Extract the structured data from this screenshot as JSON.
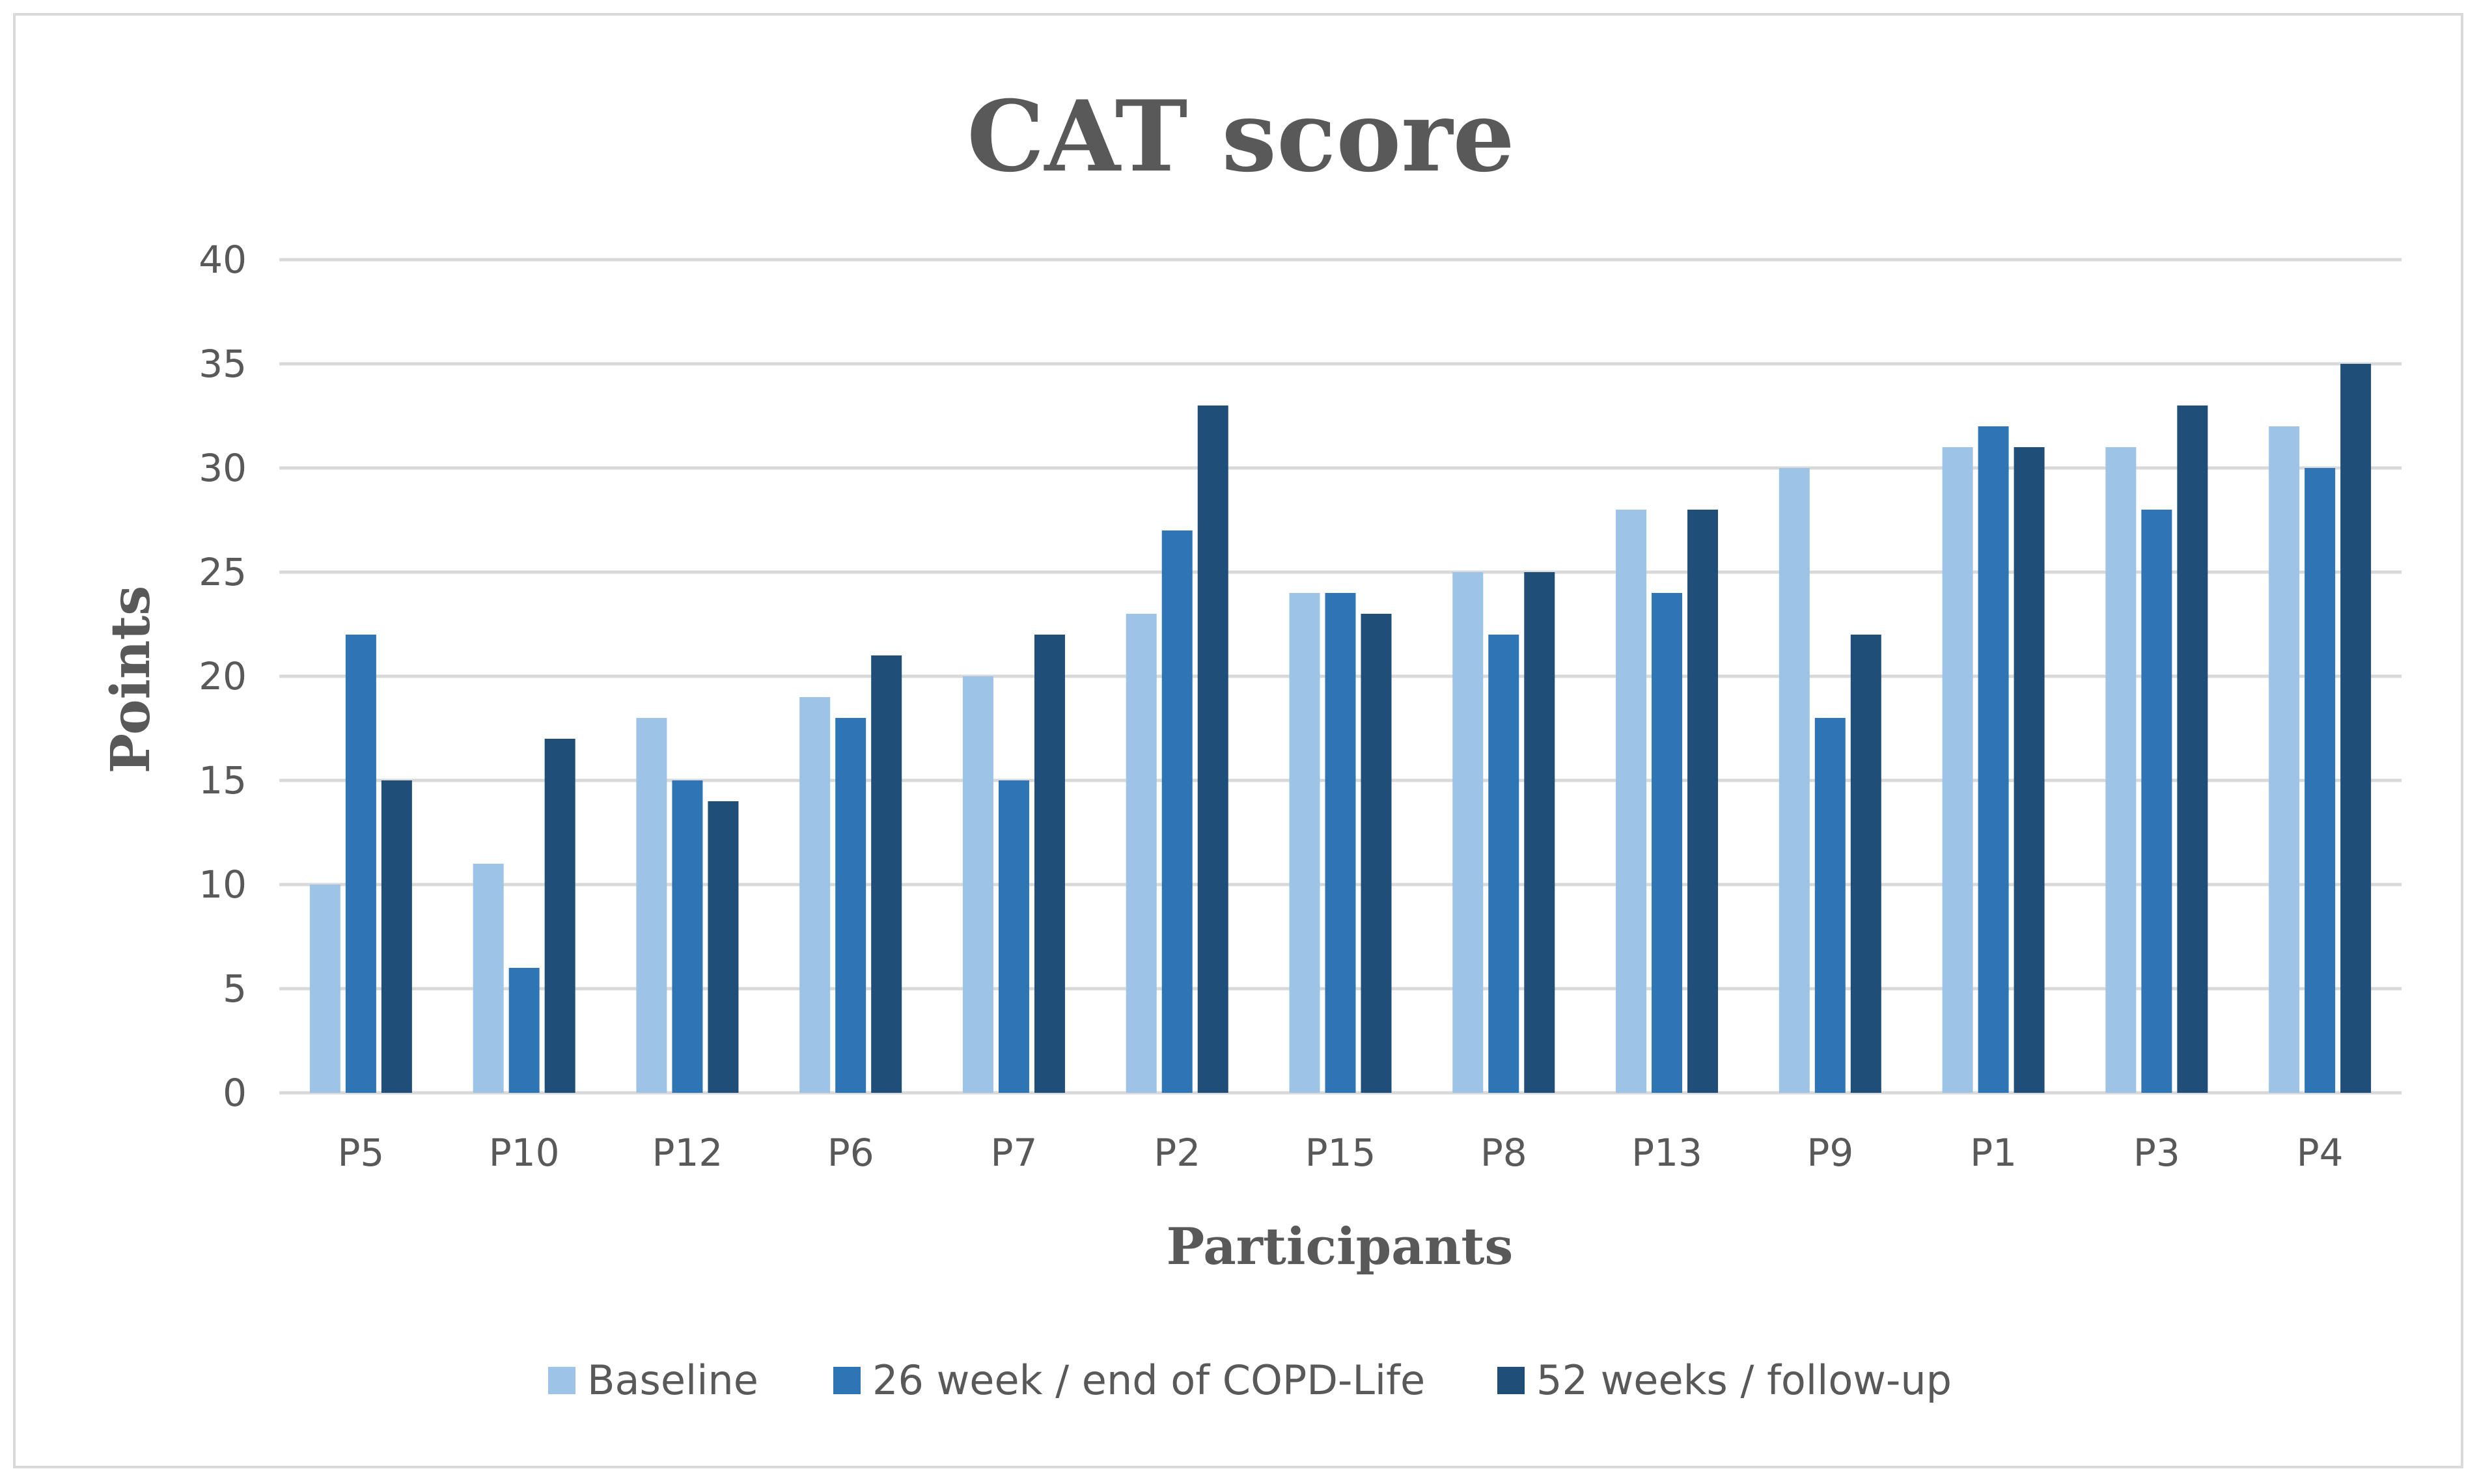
{
  "chart_data": {
    "type": "bar",
    "title": "CAT score",
    "xlabel": "Participants",
    "ylabel": "Points",
    "ylim": [
      0,
      40
    ],
    "yticks": [
      0,
      5,
      10,
      15,
      20,
      25,
      30,
      35,
      40
    ],
    "grid": true,
    "legend_position": "bottom",
    "categories": [
      "P5",
      "P10",
      "P12",
      "P6",
      "P7",
      "P2",
      "P15",
      "P8",
      "P13",
      "P9",
      "P1",
      "P3",
      "P4"
    ],
    "series": [
      {
        "name": "Baseline",
        "color": "#9dc3e6",
        "values": [
          10,
          11,
          18,
          19,
          20,
          23,
          24,
          25,
          28,
          30,
          31,
          31,
          32
        ]
      },
      {
        "name": "26 week / end of COPD-Life",
        "color": "#2e75b6",
        "values": [
          22,
          6,
          15,
          18,
          15,
          27,
          24,
          22,
          24,
          18,
          32,
          28,
          30
        ]
      },
      {
        "name": "52 weeks / follow-up",
        "color": "#1f4e79",
        "values": [
          15,
          17,
          14,
          21,
          22,
          33,
          23,
          25,
          28,
          22,
          31,
          33,
          35
        ]
      }
    ],
    "colors": {
      "gridline": "#d9d9d9",
      "axis_text": "#595959",
      "border": "#d9d9d9"
    }
  }
}
